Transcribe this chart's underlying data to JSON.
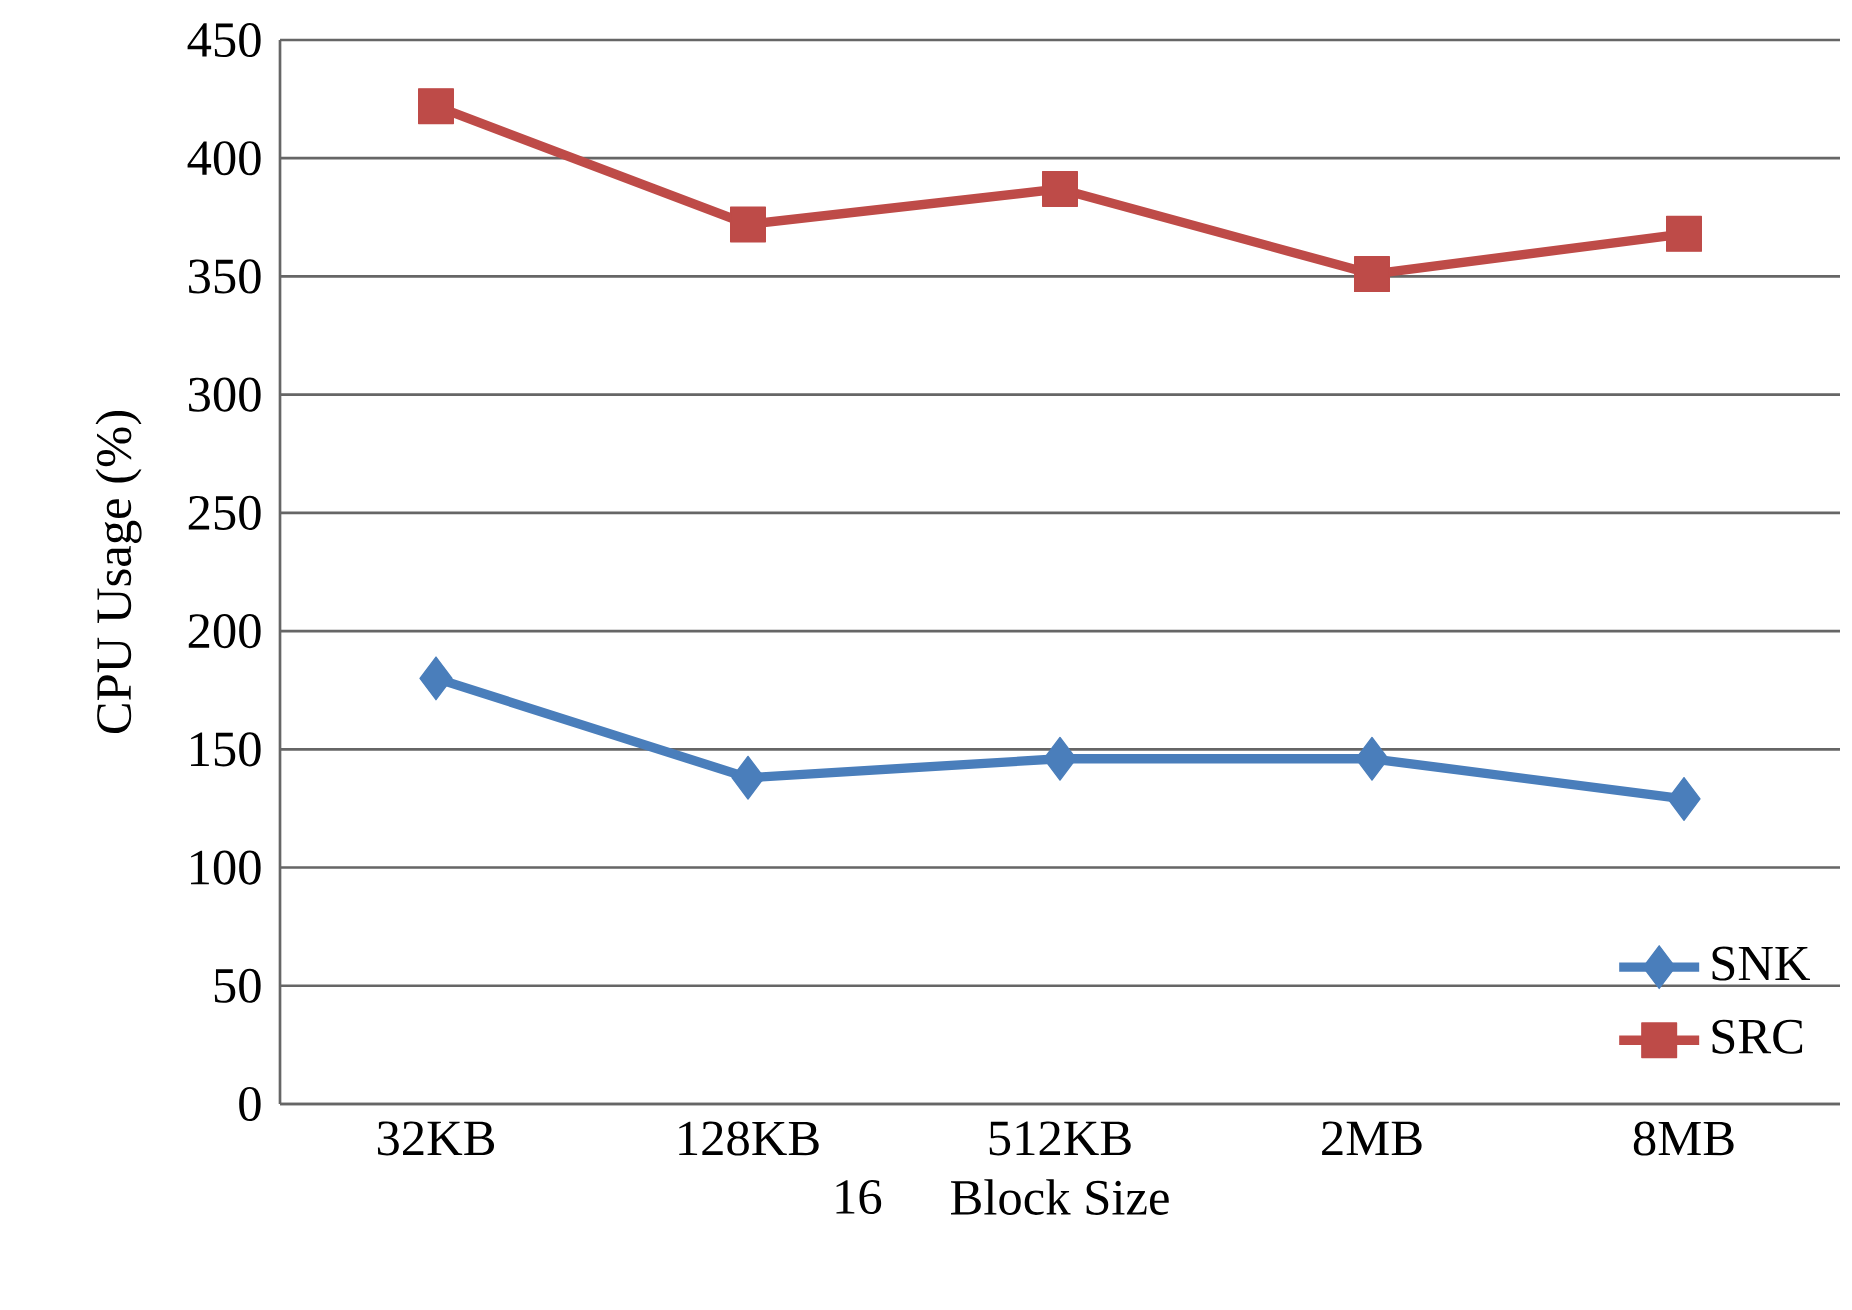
{
  "chart_data": {
    "type": "line",
    "xlabel": "Block Size",
    "ylabel": "CPU Usage (%)",
    "categories": [
      "32KB",
      "128KB",
      "512KB",
      "2MB",
      "8MB"
    ],
    "series": [
      {
        "name": "SNK",
        "color": "#4a7ebb",
        "marker": "diamond",
        "values": [
          180,
          138,
          146,
          146,
          129
        ]
      },
      {
        "name": "SRC",
        "color": "#be4b48",
        "marker": "square",
        "values": [
          422,
          372,
          387,
          351,
          368
        ]
      }
    ],
    "ylim": [
      0,
      450
    ],
    "yticks": [
      0,
      50,
      100,
      150,
      200,
      250,
      300,
      350,
      400,
      450
    ],
    "grid": "y",
    "legend": "bottom right",
    "line_style": "solid",
    "annotations": [
      "16"
    ]
  }
}
